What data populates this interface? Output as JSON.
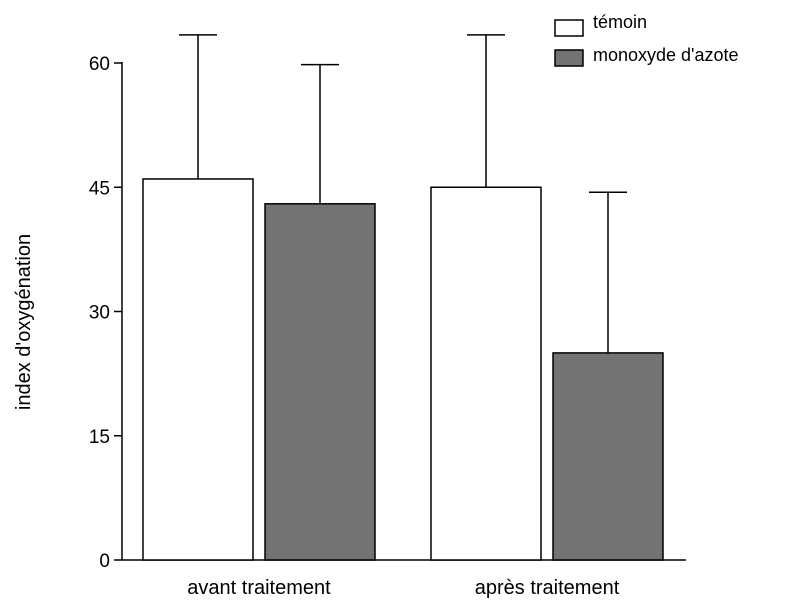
{
  "chart_data": {
    "type": "bar",
    "title": "",
    "xlabel": "",
    "ylabel": "index d'oxygénation",
    "categories": [
      "avant traitement",
      "après traitement"
    ],
    "yticks": [
      0,
      15,
      30,
      45,
      60
    ],
    "ylim": [
      0,
      60
    ],
    "grid": false,
    "legend_position": "top-right",
    "series": [
      {
        "name": "témoin",
        "color": "#ffffff",
        "values": [
          46,
          45
        ],
        "error_upper": [
          63.4,
          63.4
        ]
      },
      {
        "name": "monoxyde d'azote",
        "color": "#737373",
        "values": [
          43,
          25
        ],
        "error_upper": [
          59.8,
          44.4
        ]
      }
    ]
  }
}
